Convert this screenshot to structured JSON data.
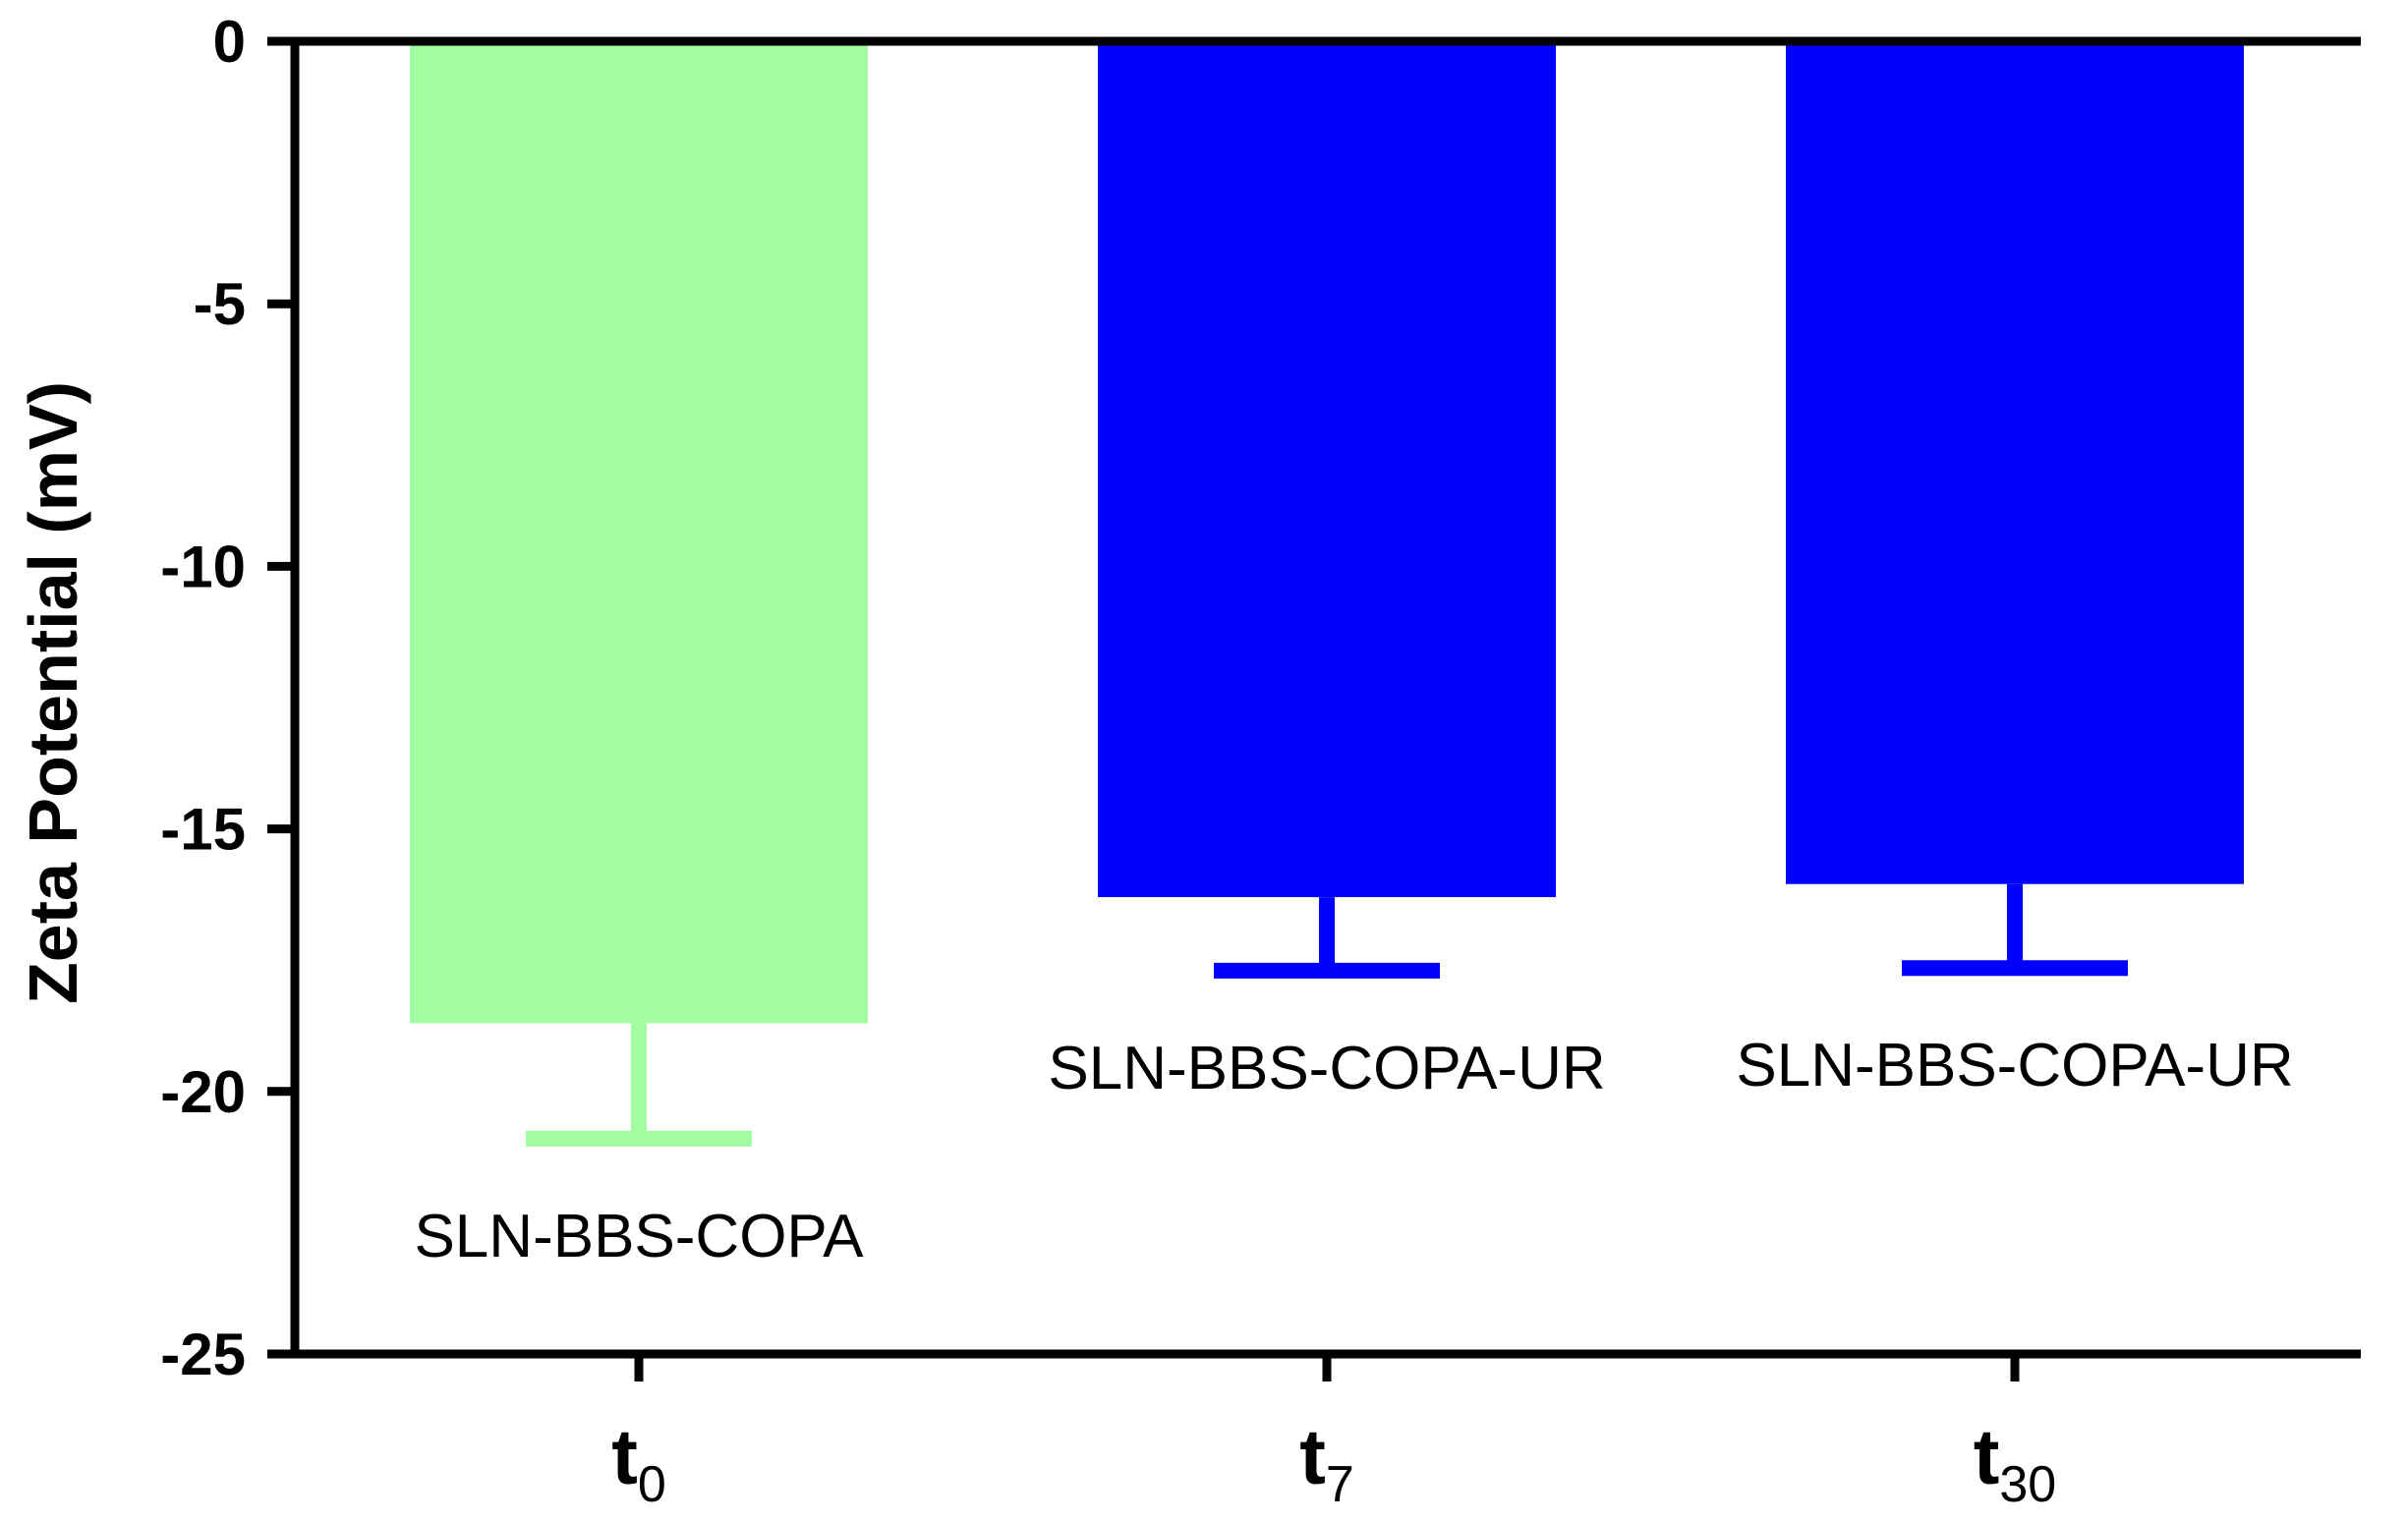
{
  "chart_data": {
    "type": "bar",
    "title": "",
    "xlabel": "",
    "ylabel": "Zeta Potential (mV)",
    "ylim": [
      -25,
      0
    ],
    "yticks": [
      0,
      -5,
      -10,
      -15,
      -20,
      -25
    ],
    "grid": false,
    "categories": [
      {
        "main": "t",
        "sub": "0"
      },
      {
        "main": "t",
        "sub": "7"
      },
      {
        "main": "t",
        "sub": "30"
      }
    ],
    "values": [
      -18.7,
      -16.3,
      -16.05
    ],
    "errors": [
      2.2,
      1.4,
      1.6
    ],
    "bar_labels": [
      "SLN-BBS-COPA",
      "SLN-BBS-COPA-UR",
      "SLN-BBS-COPA-UR"
    ],
    "colors": [
      "#a2fda0",
      "#0000ff",
      "#0000ff"
    ]
  }
}
